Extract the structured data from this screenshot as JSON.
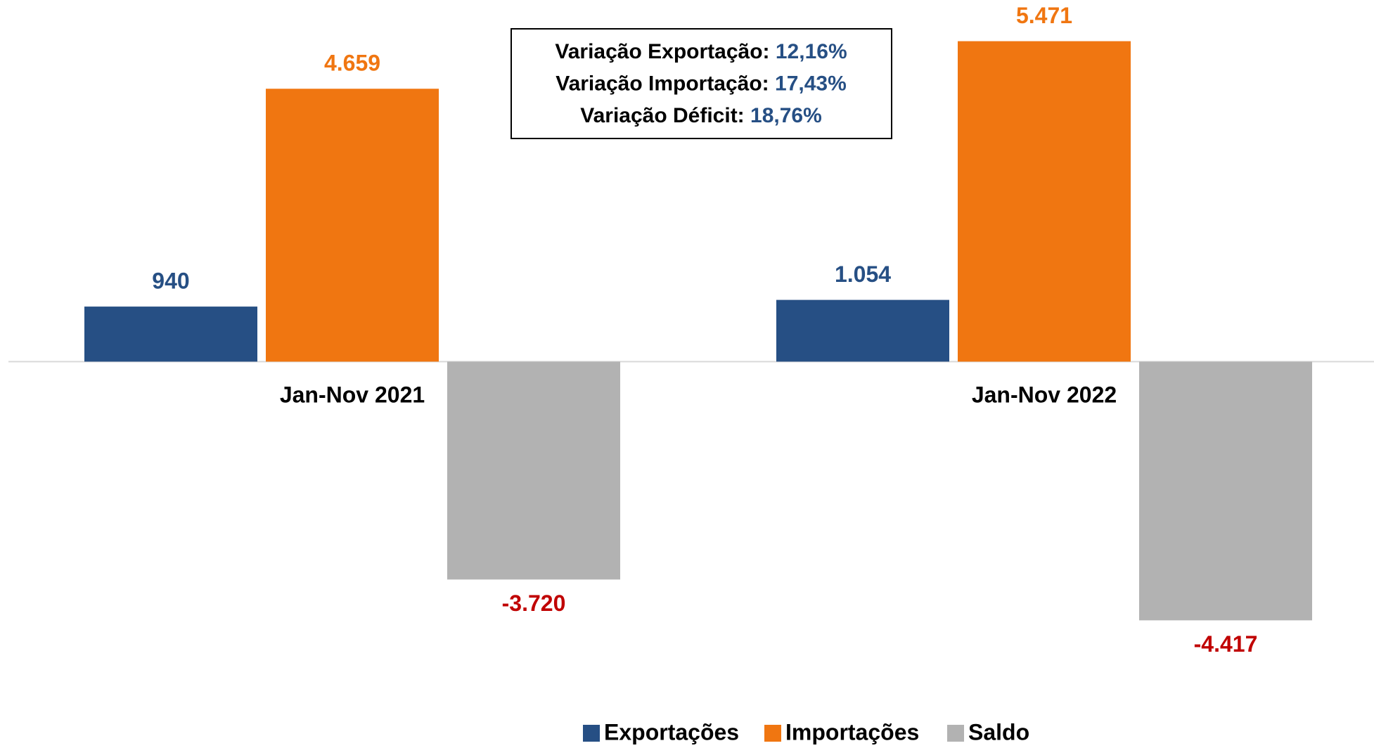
{
  "chart_data": {
    "type": "bar",
    "categories": [
      "Jan-Nov 2021",
      "Jan-Nov 2022"
    ],
    "series": [
      {
        "name": "Exportações",
        "color": "#264f84",
        "label_color": "#264f84",
        "values": [
          940,
          1054
        ],
        "value_labels": [
          "940",
          "1.054"
        ]
      },
      {
        "name": "Importações",
        "color": "#f07611",
        "label_color": "#f07611",
        "values": [
          4659,
          5471
        ],
        "value_labels": [
          "4.659",
          "5.471"
        ]
      },
      {
        "name": "Saldo",
        "color": "#b2b2b2",
        "label_color": "#c00000",
        "values": [
          -3720,
          -4417
        ],
        "value_labels": [
          "-3.720",
          "-4.417"
        ]
      }
    ],
    "ylim": [
      -5000,
      6000
    ],
    "annotations": [
      {
        "label": "Variação Exportação:",
        "value": "12,16%"
      },
      {
        "label": "Variação Importação:",
        "value": "17,43%"
      },
      {
        "label": "Variação Déficit:",
        "value": "18,76%"
      }
    ],
    "legend": "bottom"
  }
}
